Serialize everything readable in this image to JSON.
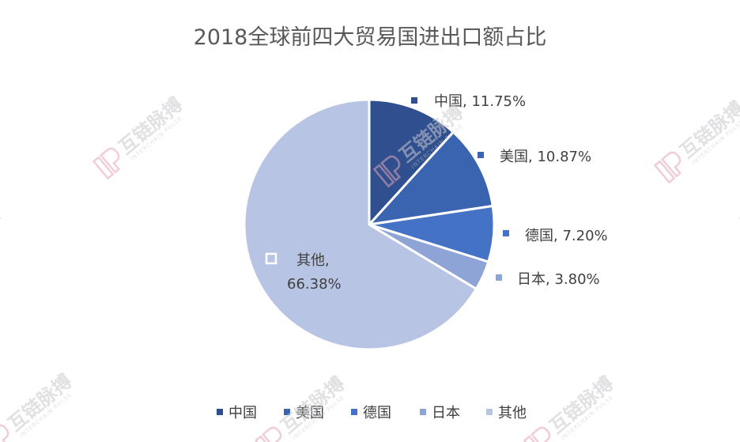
{
  "chart_data": {
    "type": "pie",
    "title": "2018全球前四大贸易国进出口额占比",
    "categories": [
      "中国",
      "美国",
      "德国",
      "日本",
      "其他"
    ],
    "values": [
      11.75,
      10.87,
      7.2,
      3.8,
      66.38
    ],
    "value_labels": [
      "11.75%",
      "10.87%",
      "7.20%",
      "3.80%",
      "66.38%"
    ],
    "colors": [
      "#2f4f8f",
      "#3a63b0",
      "#4472c4",
      "#8ea3d6",
      "#b8c4e3"
    ],
    "legend": {
      "position": "bottom",
      "entries": [
        "中国",
        "美国",
        "德国",
        "日本",
        "其他"
      ]
    },
    "start_angle_deg": 0,
    "direction": "clockwise"
  },
  "watermark": {
    "text": "互链脉搏",
    "subtext": "INTERCHAIN PULSE"
  }
}
